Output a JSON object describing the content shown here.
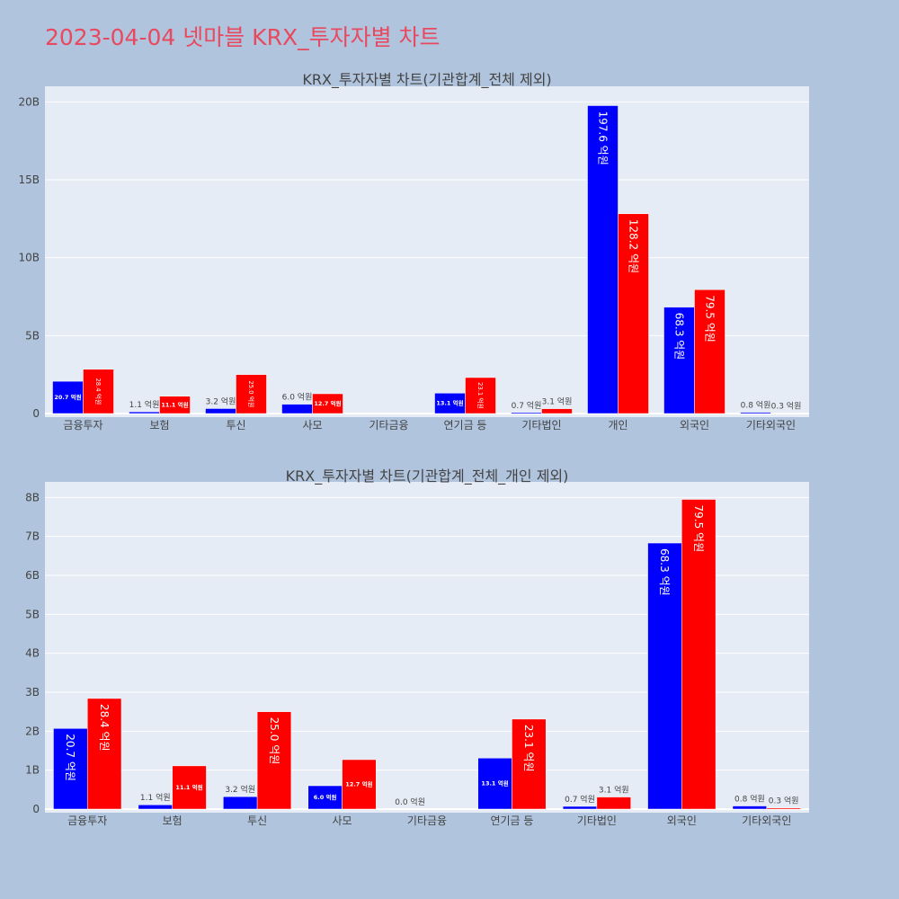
{
  "title": "2023-04-04 넷마블 KRX_투자자별 차트",
  "chart_data": [
    {
      "type": "bar",
      "title": "KRX_투자자별 차트(기관합계_전체 제외)",
      "categories": [
        "금융투자",
        "보험",
        "투신",
        "사모",
        "기타금융",
        "연기금 등",
        "기타법인",
        "개인",
        "외국인",
        "기타외국인"
      ],
      "yticks": [
        "0",
        "5B",
        "10B",
        "15B",
        "20B"
      ],
      "ylim": [
        0,
        21000000000
      ],
      "series": [
        {
          "color": "#0000ff",
          "values": [
            2070000000,
            110000000,
            320000000,
            600000000,
            0,
            1310000000,
            70000000,
            19760000000,
            6830000000,
            80000000
          ],
          "labels": [
            "20.7 억원",
            "1.1 억원",
            "3.2 억원",
            "6.0 억원",
            "",
            "13.1 억원",
            "0.7 억원",
            "197.6 억원",
            "68.3 억원",
            "0.8 억원"
          ]
        },
        {
          "color": "#ff0000",
          "values": [
            2840000000,
            1110000000,
            2500000000,
            1270000000,
            0,
            2310000000,
            310000000,
            12820000000,
            7950000000,
            30000000
          ],
          "labels": [
            "28.4 억원",
            "11.1 억원",
            "25.0 억원",
            "12.7 억원",
            "",
            "23.1 억원",
            "3.1 억원",
            "128.2 억원",
            "79.5 억원",
            "0.3 억원"
          ]
        }
      ]
    },
    {
      "type": "bar",
      "title": "KRX_투자자별 차트(기관합계_전체_개인 제외)",
      "categories": [
        "금융투자",
        "보험",
        "투신",
        "사모",
        "기타금융",
        "연기금 등",
        "기타법인",
        "외국인",
        "기타외국인"
      ],
      "yticks": [
        "0",
        "1B",
        "2B",
        "3B",
        "4B",
        "5B",
        "6B",
        "7B",
        "8B"
      ],
      "ylim": [
        0,
        8400000000
      ],
      "series": [
        {
          "color": "#0000ff",
          "values": [
            2070000000,
            110000000,
            320000000,
            600000000,
            0,
            1310000000,
            70000000,
            6830000000,
            80000000
          ],
          "labels": [
            "20.7 억원",
            "1.1 억원",
            "3.2 억원",
            "6.0 억원",
            "0.0 억원",
            "13.1 억원",
            "0.7 억원",
            "68.3 억원",
            "0.8 억원"
          ]
        },
        {
          "color": "#ff0000",
          "values": [
            2840000000,
            1110000000,
            2500000000,
            1270000000,
            0,
            2310000000,
            310000000,
            7950000000,
            30000000
          ],
          "labels": [
            "28.4 억원",
            "11.1 억원",
            "25.0 억원",
            "12.7 억원",
            "",
            "23.1 억원",
            "3.1 억원",
            "79.5 억원",
            "0.3 억원"
          ]
        }
      ]
    }
  ]
}
